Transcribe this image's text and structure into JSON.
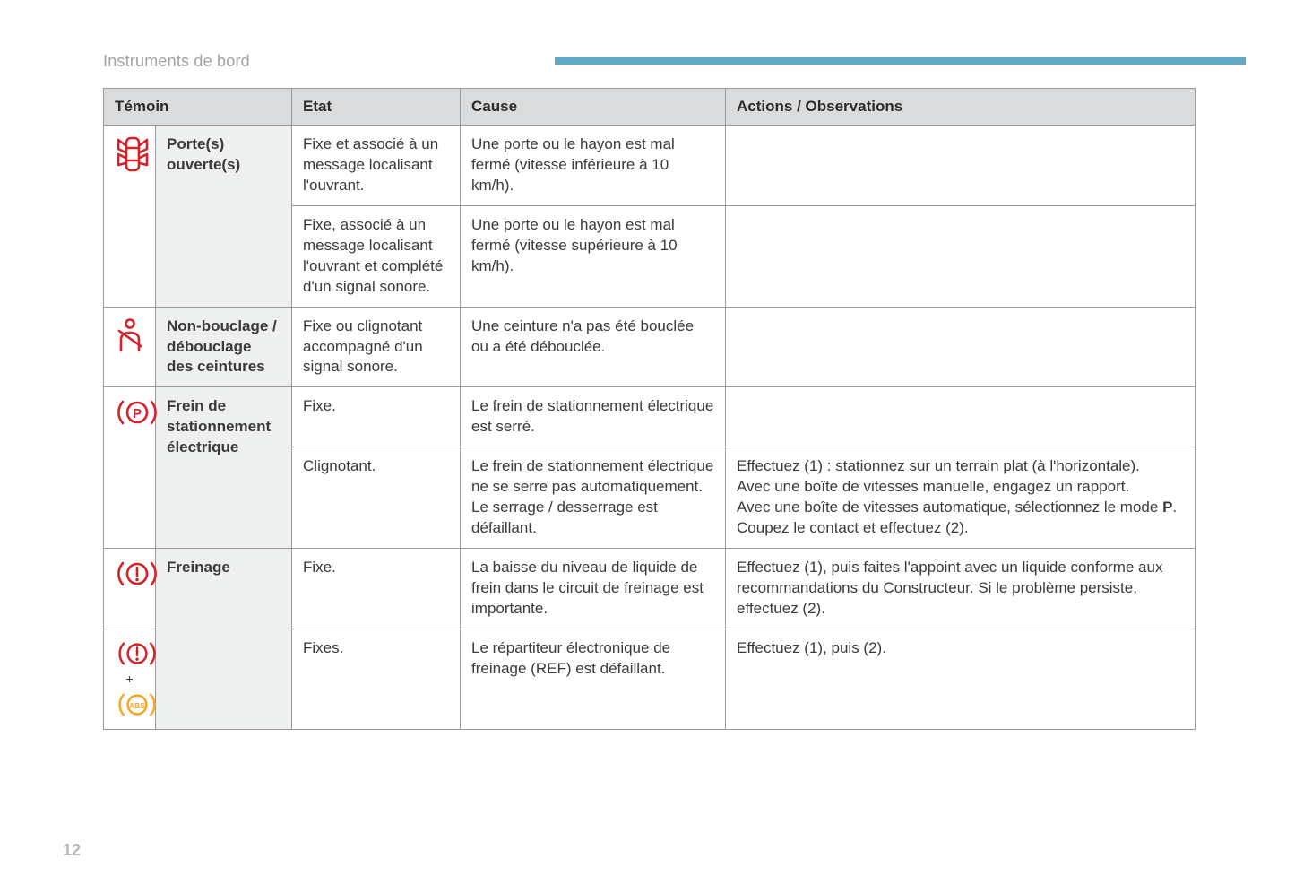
{
  "header": {
    "title": "Instruments de bord",
    "bar_color": "#5fa9c2"
  },
  "page_number": "12",
  "icon_colors": {
    "red": "#d62027",
    "amber": "#f5a623"
  },
  "columns": {
    "temoin": "Témoin",
    "etat": "Etat",
    "cause": "Cause",
    "actions": "Actions / Observations"
  },
  "rows": {
    "doors": {
      "label": "Porte(s) ouverte(s)",
      "r1": {
        "state": "Fixe et associé à un message localisant l'ouvrant.",
        "cause": "Une porte ou le hayon est mal fermé (vitesse inférieure à 10 km/h).",
        "action": ""
      },
      "r2": {
        "state": "Fixe, associé à un message localisant l'ouvrant et complété d'un signal sonore.",
        "cause": "Une porte ou le hayon est mal fermé (vitesse supérieure à 10 km/h).",
        "action": ""
      }
    },
    "seatbelt": {
      "label": "Non-bouclage / débouclage des ceintures",
      "state": "Fixe ou clignotant accompagné d'un signal sonore.",
      "cause": "Une ceinture n'a pas été bouclée ou a été débouclée.",
      "action": ""
    },
    "parking_brake": {
      "label": "Frein de stationnement électrique",
      "r1": {
        "state": "Fixe.",
        "cause": "Le frein de stationnement électrique est serré.",
        "action": ""
      },
      "r2": {
        "state": "Clignotant.",
        "cause": "Le frein de stationnement électrique ne se serre pas automatiquement.\nLe serrage / desserrage est défaillant.",
        "action_html": "Effectuez (1) : stationnez sur un terrain plat (à l'horizontale).<br>Avec une boîte de vitesses manuelle, engagez un rapport.<br>Avec une boîte de vitesses automatique, sélectionnez le mode <strong>P</strong>.<br>Coupez le contact et effectuez (2)."
      }
    },
    "braking": {
      "label": "Freinage",
      "r1": {
        "state": "Fixe.",
        "cause": "La baisse du niveau de liquide de frein dans le circuit de freinage est importante.",
        "action": "Effectuez (1), puis faites l'appoint avec un liquide conforme aux recommandations du Constructeur. Si le problème persiste, effectuez (2)."
      },
      "r2": {
        "state": "Fixes.",
        "cause": "Le répartiteur électronique de freinage (REF) est défaillant.",
        "action": "Effectuez (1), puis (2)."
      }
    }
  }
}
